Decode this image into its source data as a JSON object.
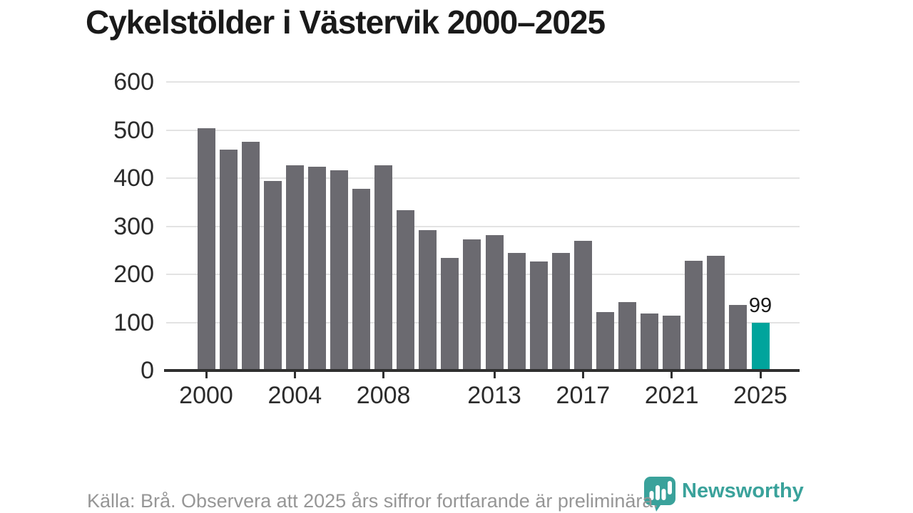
{
  "title": "Cykelstölder i Västervik 2000–2025",
  "chart_data": {
    "type": "bar",
    "title": "Cykelstölder i Västervik 2000–2025",
    "xlabel": "",
    "ylabel": "",
    "x": [
      2000,
      2001,
      2002,
      2003,
      2004,
      2005,
      2006,
      2007,
      2008,
      2009,
      2010,
      2011,
      2012,
      2013,
      2014,
      2015,
      2016,
      2017,
      2018,
      2019,
      2020,
      2021,
      2022,
      2023,
      2024,
      2025
    ],
    "values": [
      503,
      460,
      475,
      394,
      427,
      423,
      417,
      378,
      426,
      334,
      292,
      234,
      273,
      281,
      245,
      227,
      245,
      270,
      122,
      142,
      119,
      114,
      228,
      239,
      136,
      99
    ],
    "highlight_index": 25,
    "annotation": {
      "year": 2025,
      "label": "99"
    },
    "xticks": [
      2000,
      2004,
      2008,
      2013,
      2017,
      2021,
      2025
    ],
    "yticks": [
      0,
      100,
      200,
      300,
      400,
      500,
      600
    ],
    "ylim": [
      0,
      600
    ],
    "grid": "horizontal",
    "legend": "none"
  },
  "footer": {
    "source_note": "Källa: Brå. Observera att 2025 års siffror fortfarande är preliminära."
  },
  "logo": {
    "text": "Newsworthy",
    "icon": "newsworthy-speech-bubble-bar-chart-icon"
  },
  "colors": {
    "background": "#ffffff",
    "title": "#1a1a1a",
    "bar": "#6b6a70",
    "highlight": "#00a49c",
    "grid": "#e3e3e3",
    "axis": "#2f2f2f",
    "tick_label": "#2b2b2b",
    "annotation": "#1a1a1a",
    "footer_text": "#969696",
    "logo": "#3aa29b"
  }
}
